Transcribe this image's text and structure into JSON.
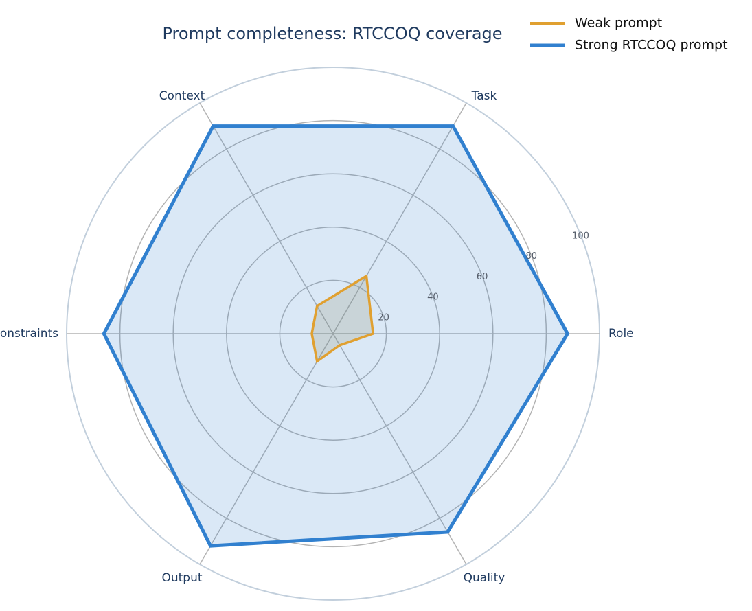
{
  "chart_data": {
    "type": "radar",
    "title": "Prompt completeness: RTCCOQ coverage",
    "categories": [
      "Role",
      "Task",
      "Context",
      "Constraints",
      "Output",
      "Quality"
    ],
    "radial_ticks": [
      20,
      40,
      60,
      80,
      100
    ],
    "rlim": [
      0,
      100
    ],
    "grid": true,
    "legend_position": "top-right",
    "series": [
      {
        "name": "Weak prompt",
        "values": [
          15,
          25,
          12,
          8,
          12,
          5
        ],
        "color": "#e0a030"
      },
      {
        "name": "Strong RTCCOQ prompt",
        "values": [
          88,
          90,
          90,
          86,
          92,
          86
        ],
        "color": "#3180cf"
      }
    ]
  }
}
